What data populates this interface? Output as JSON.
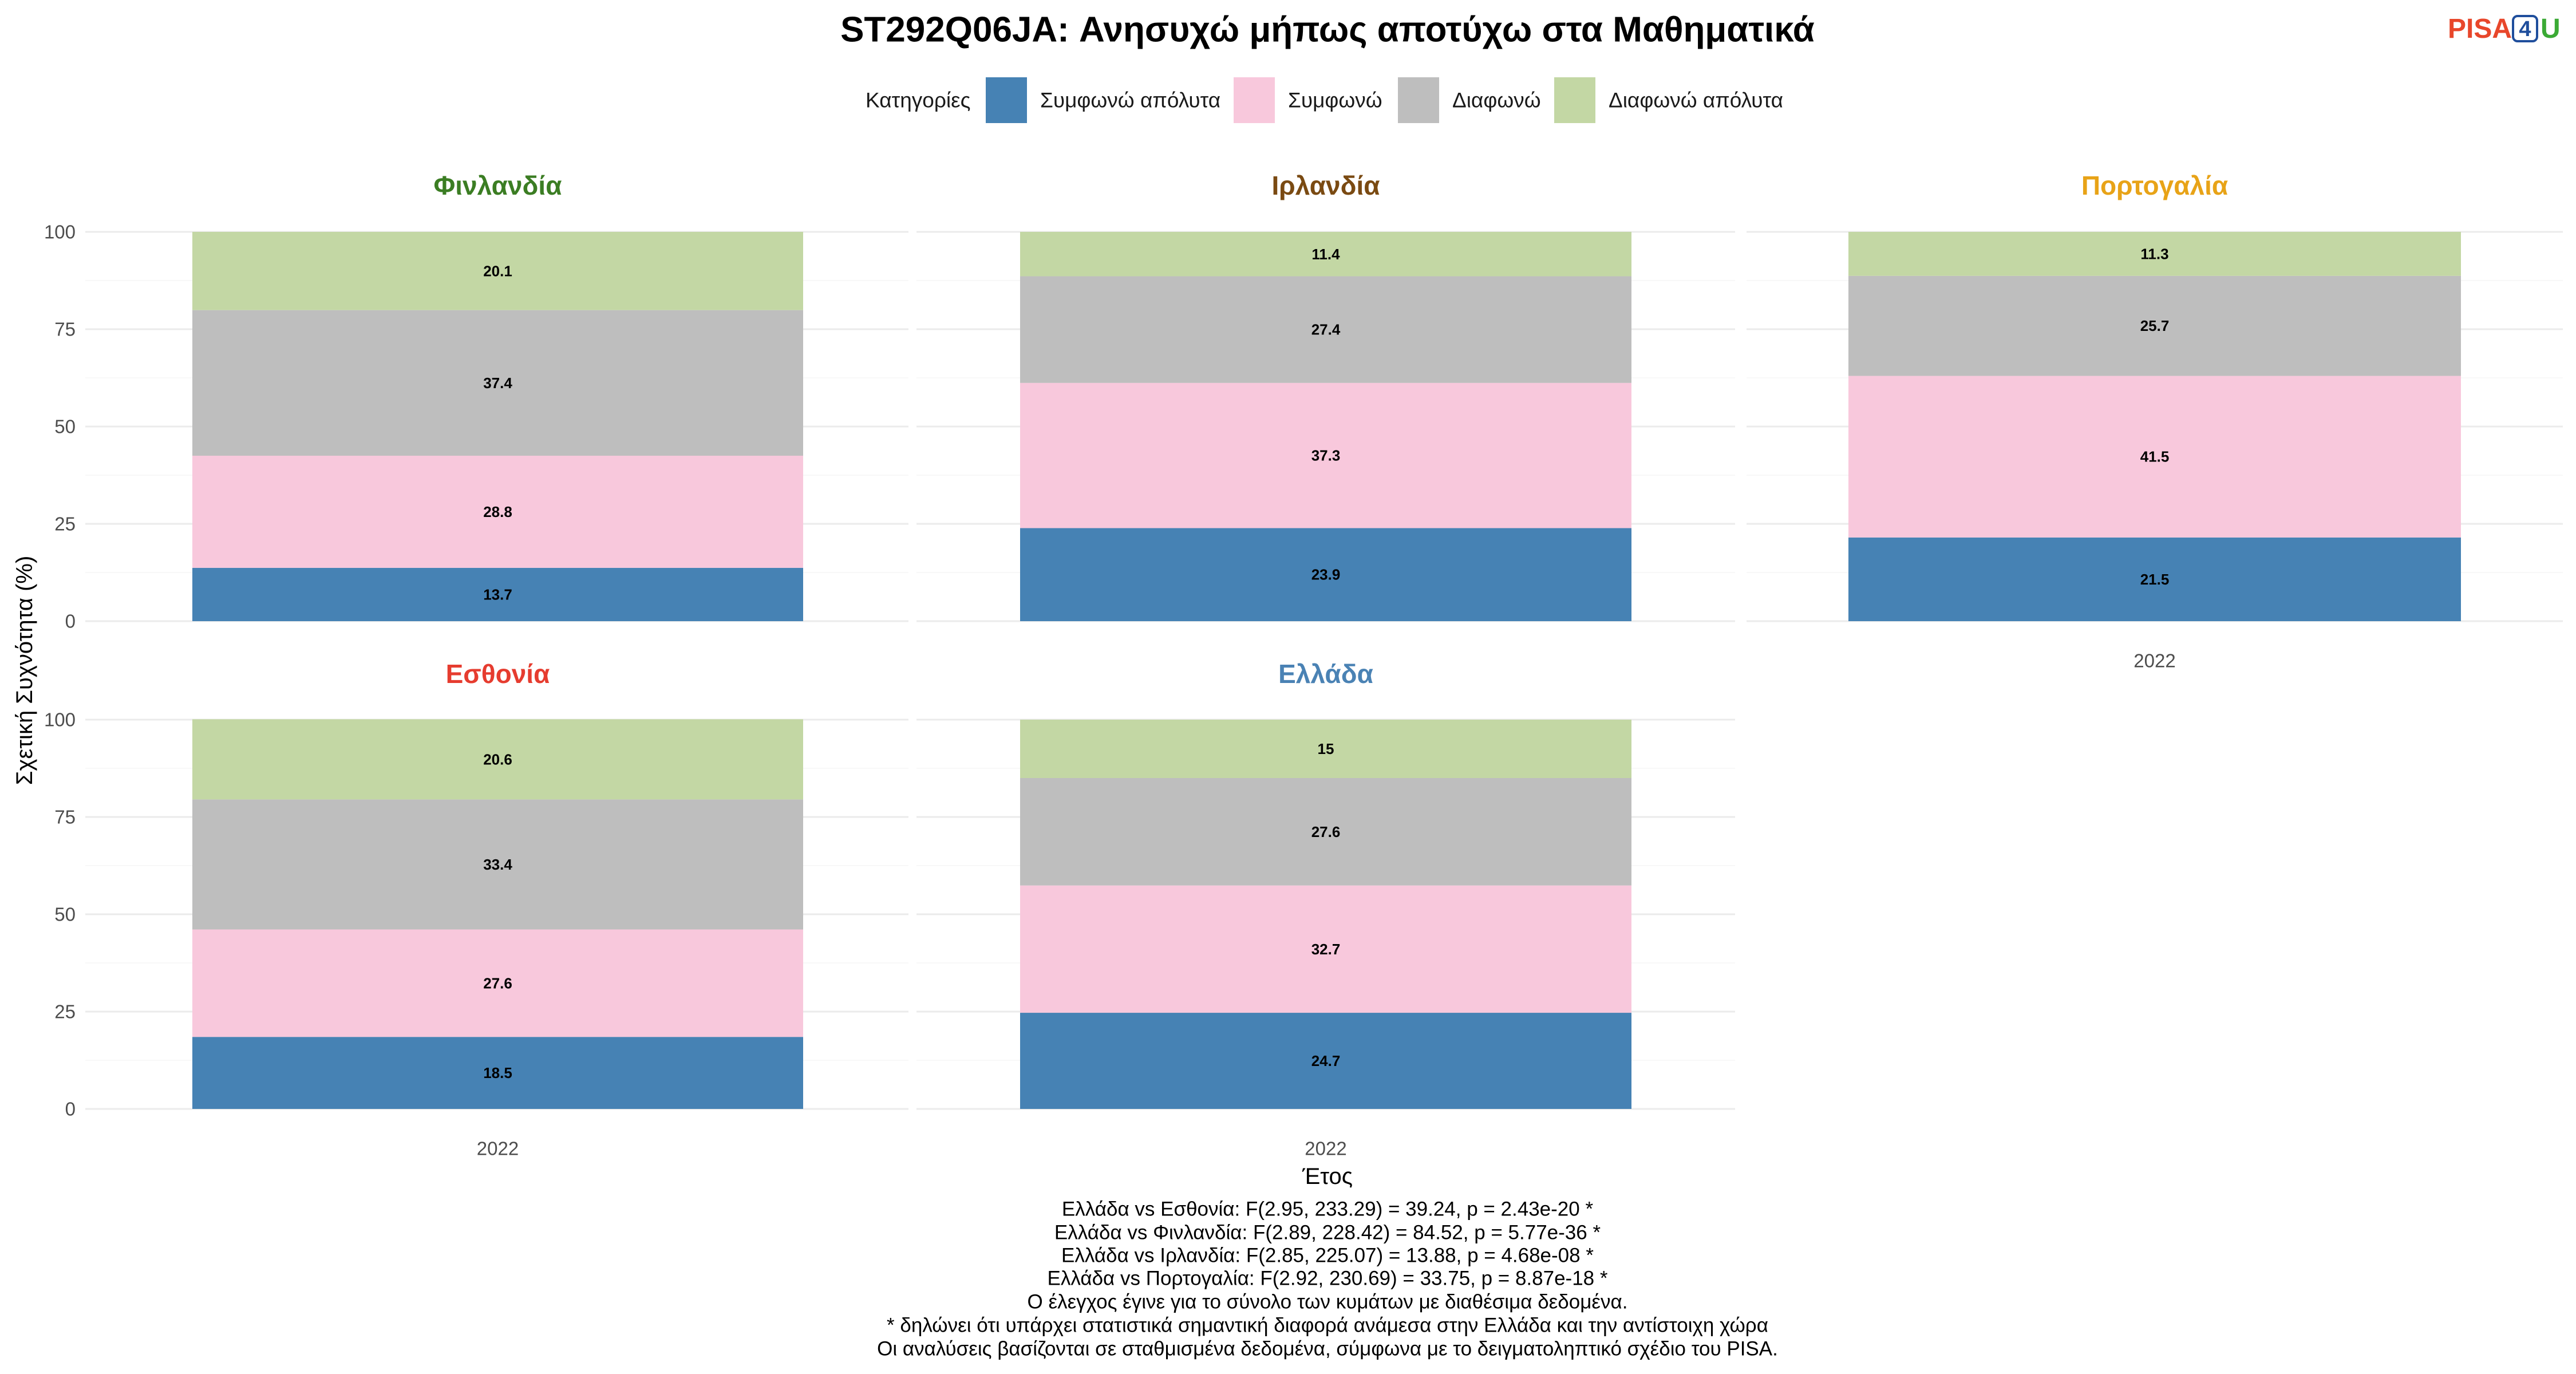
{
  "chart_data": {
    "type": "bar",
    "stacked": true,
    "title": "ST292Q06JA: Ανησυχώ μήπως αποτύχω στα Μαθηματικά",
    "xlabel": "Έτος",
    "ylabel": "Σχετική Συχνότητα (%)",
    "ylim": [
      0,
      100
    ],
    "yticks": [
      0,
      25,
      50,
      75,
      100
    ],
    "grid": true,
    "legend": {
      "title": "Κατηγορίες",
      "position": "top"
    },
    "categories": [
      "2022"
    ],
    "series": [
      {
        "name": "Συμφωνώ απόλυτα",
        "color": "#4682B4"
      },
      {
        "name": "Συμφωνώ",
        "color": "#F8C8DC"
      },
      {
        "name": "Διαφωνώ",
        "color": "#BEBEBE"
      },
      {
        "name": "Διαφωνώ απόλυτα",
        "color": "#C3D7A4"
      }
    ],
    "panels": [
      {
        "title": "Φινλανδία",
        "title_color": "#3B7D23",
        "values": [
          13.7,
          28.8,
          37.4,
          20.1
        ]
      },
      {
        "title": "Ιρλανδία",
        "title_color": "#7A4A12",
        "values": [
          23.9,
          37.3,
          27.4,
          11.4
        ]
      },
      {
        "title": "Πορτογαλία",
        "title_color": "#E8A317",
        "values": [
          21.5,
          41.5,
          25.7,
          11.3
        ]
      },
      {
        "title": "Εσθονία",
        "title_color": "#E63C2F",
        "values": [
          18.5,
          27.6,
          33.4,
          20.6
        ]
      },
      {
        "title": "Ελλάδα",
        "title_color": "#4A82B4",
        "values": [
          24.7,
          32.7,
          27.6,
          15
        ]
      }
    ]
  },
  "logo": {
    "text": [
      "PISA",
      "4",
      "U"
    ],
    "colors": [
      "#E8472B",
      "#1F4E9C",
      "#3BAA35"
    ]
  },
  "notes": [
    "Ελλάδα vs Εσθονία: F(2.95, 233.29) = 39.24, p = 2.43e-20 *",
    "Ελλάδα vs Φινλανδία: F(2.89, 228.42) = 84.52, p = 5.77e-36 *",
    "Ελλάδα vs Ιρλανδία: F(2.85, 225.07) = 13.88, p = 4.68e-08 *",
    "Ελλάδα vs Πορτογαλία: F(2.92, 230.69) = 33.75, p = 8.87e-18 *",
    "Ο έλεγχος έγινε για το σύνολο των κυμάτων με διαθέσιμα δεδομένα.",
    "* δηλώνει ότι υπάρχει στατιστικά σημαντική διαφορά ανάμεσα στην Ελλάδα και την αντίστοιχη χώρα",
    "Οι αναλύσεις βασίζονται σε σταθμισμένα δεδομένα, σύμφωνα με το δειγματοληπτικό σχέδιο του PISA."
  ]
}
